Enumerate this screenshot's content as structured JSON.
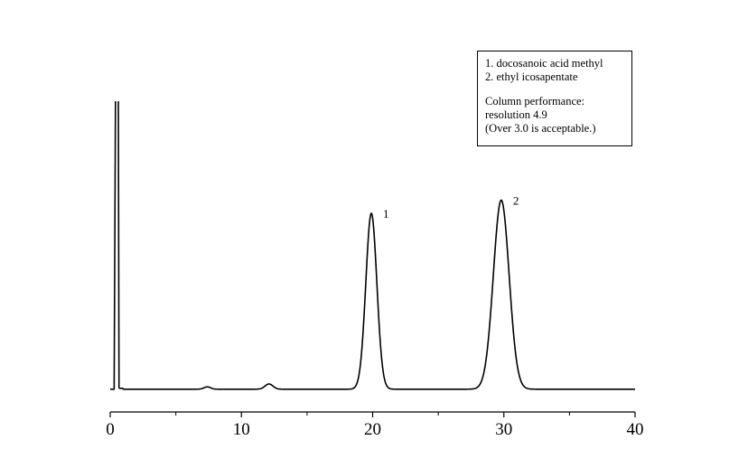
{
  "chart_data": {
    "type": "line",
    "title": "",
    "xlabel": "",
    "ylabel": "",
    "xlim": [
      0,
      40
    ],
    "ylim": [
      0,
      100
    ],
    "x_ticks": [
      0,
      10,
      20,
      30,
      40
    ],
    "x_tick_labels": [
      "0",
      "10",
      "20",
      "30",
      "40"
    ],
    "grid": false,
    "legend_placement": "top-right",
    "baseline": 1.0,
    "solvent_front": {
      "x_start": 0.4,
      "x_end": 0.62,
      "height": 100
    },
    "peaks": [
      {
        "x": 7.4,
        "height": 0.8,
        "width": 0.25,
        "label": ""
      },
      {
        "x": 12.1,
        "height": 1.8,
        "width": 0.3,
        "label": ""
      },
      {
        "x": 19.9,
        "height": 60.5,
        "width": 0.42,
        "label": "1"
      },
      {
        "x": 29.8,
        "height": 65.0,
        "width": 0.6,
        "label": "2"
      }
    ],
    "annotations": {
      "legend_lines": [
        "1. docosanoic acid methyl",
        "2. ethyl icosapentate",
        "Column performance:",
        "resolution 4.9",
        "(Over 3.0 is acceptable.)"
      ]
    }
  },
  "legend": {
    "line1": "1. docosanoic acid methyl",
    "line2": "2. ethyl icosapentate",
    "line3": "Column performance:",
    "line4": "resolution 4.9",
    "line5": "(Over 3.0 is acceptable.)"
  },
  "colors": {
    "trace": "#000000",
    "axis": "#000000",
    "background": "#ffffff"
  }
}
